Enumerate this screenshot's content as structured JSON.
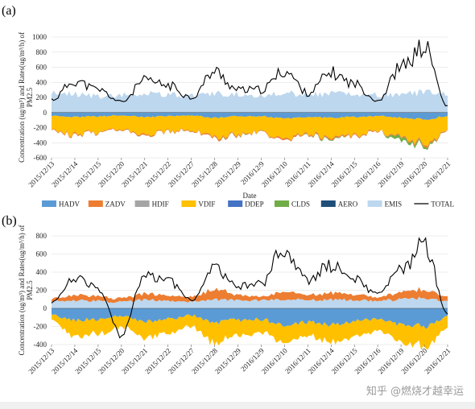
{
  "colors": {
    "HADV": "#5b9bd5",
    "ZADV": "#ed7d31",
    "HDIF": "#a5a5a5",
    "VDIF": "#ffc000",
    "DDEP": "#4472c4",
    "CLDS": "#70ad47",
    "AERO": "#1f4e79",
    "EMIS": "#bdd7ee",
    "TOTAL": "#000000",
    "grid": "#d9d9d9"
  },
  "chart_data": [
    {
      "type": "area",
      "panel": "(a)",
      "title": "",
      "xlabel": "Date",
      "ylabel": "Concentration (ug/m³) and Rates(ug/m³/h) of PM2.5",
      "ylim": [
        -600,
        1000
      ],
      "yticks": [
        "1000",
        "800",
        "600",
        "400",
        "200",
        "0",
        "-200",
        "-400",
        "-600"
      ],
      "grid": true,
      "legend": [
        "HADV",
        "ZADV",
        "HDIF",
        "VDIF",
        "DDEP",
        "CLDS",
        "AERO",
        "EMIS",
        "TOTAL"
      ],
      "legend_position": "bottom",
      "categories": [
        "2015/12/13",
        "2015/12/14",
        "2015/12/15",
        "2015/12/20",
        "2015/12/21",
        "2015/12/22",
        "2015/12/27",
        "2015/12/28",
        "2015/12/29",
        "2016/12/9",
        "2016/12/10",
        "2016/12/11",
        "2016/12/14",
        "2016/12/15",
        "2016/12/16",
        "2016/12/19",
        "2016/12/20",
        "2016/12/21"
      ],
      "series": [
        {
          "name": "TOTAL",
          "values": [
            170,
            420,
            300,
            140,
            420,
            360,
            200,
            540,
            300,
            300,
            550,
            260,
            520,
            380,
            160,
            600,
            860,
            80
          ]
        },
        {
          "name": "EMIS",
          "values": [
            260,
            240,
            220,
            230,
            250,
            240,
            220,
            250,
            240,
            230,
            260,
            240,
            250,
            240,
            230,
            250,
            260,
            240
          ]
        },
        {
          "name": "HADV",
          "values": [
            -40,
            -60,
            -50,
            -40,
            -60,
            -50,
            -40,
            -70,
            -50,
            -50,
            -80,
            -60,
            -70,
            -60,
            -50,
            -70,
            -90,
            -50
          ]
        },
        {
          "name": "VDIF",
          "values": [
            -190,
            -230,
            -210,
            -170,
            -220,
            -200,
            -180,
            -260,
            -230,
            -210,
            -290,
            -220,
            -270,
            -240,
            -200,
            -250,
            -310,
            -200
          ]
        },
        {
          "name": "ZADV",
          "values": [
            -10,
            -15,
            -10,
            -10,
            -15,
            -10,
            -10,
            -20,
            -15,
            -10,
            -20,
            -15,
            -20,
            -15,
            -10,
            -15,
            -25,
            -10
          ]
        },
        {
          "name": "CLDS",
          "values": [
            0,
            0,
            0,
            0,
            0,
            0,
            0,
            0,
            -5,
            0,
            0,
            -5,
            -10,
            0,
            0,
            -40,
            -20,
            0
          ]
        }
      ]
    },
    {
      "type": "area",
      "panel": "(b)",
      "title": "",
      "xlabel": "",
      "ylabel": "Concentration (ug/m³) and Rates(ug/m³/h) of PM2.5",
      "ylim": [
        -400,
        800
      ],
      "yticks": [
        "800",
        "600",
        "400",
        "200",
        "0",
        "-200",
        "-400"
      ],
      "grid": true,
      "categories": [
        "2015/12/13",
        "2015/12/14",
        "2015/12/15",
        "2015/12/20",
        "2015/12/21",
        "2015/12/22",
        "2015/12/27",
        "2015/12/28",
        "2015/12/29",
        "2016/12/9",
        "2016/12/10",
        "2016/12/11",
        "2016/12/14",
        "2016/12/15",
        "2016/12/16",
        "2016/12/19",
        "2016/12/20",
        "2016/12/21"
      ],
      "series": [
        {
          "name": "TOTAL",
          "values": [
            60,
            330,
            220,
            -290,
            370,
            300,
            100,
            430,
            240,
            270,
            680,
            300,
            480,
            330,
            150,
            410,
            700,
            -60
          ]
        },
        {
          "name": "EMIS",
          "values": [
            80,
            90,
            80,
            70,
            90,
            80,
            70,
            100,
            90,
            90,
            100,
            90,
            100,
            90,
            80,
            100,
            110,
            80
          ]
        },
        {
          "name": "HADV",
          "values": [
            -80,
            -130,
            -120,
            -90,
            -150,
            -120,
            -80,
            -160,
            -130,
            -120,
            -200,
            -150,
            -180,
            -150,
            -110,
            -170,
            -200,
            -100
          ]
        },
        {
          "name": "VDIF",
          "values": [
            -60,
            -170,
            -160,
            -120,
            -180,
            -160,
            -130,
            -230,
            -170,
            -140,
            -200,
            -150,
            -190,
            -170,
            -130,
            -190,
            -230,
            -120
          ]
        },
        {
          "name": "ZADV",
          "values": [
            30,
            60,
            50,
            40,
            70,
            60,
            50,
            110,
            60,
            40,
            80,
            60,
            70,
            70,
            40,
            80,
            90,
            50
          ]
        }
      ]
    }
  ],
  "watermark": "知乎 @燃烧才越幸运"
}
